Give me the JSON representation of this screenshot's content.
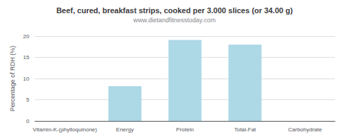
{
  "chart_data": {
    "type": "bar",
    "title": "Beef, cured, breakfast strips, cooked per 3.000 slices (or 34.00 g)",
    "subtitle": "www.dietandfitnesstoday.com",
    "categories": [
      "Vitamin-K-(phylloquinone)",
      "Energy",
      "Protein",
      "Total-Fat",
      "Carbohydrate"
    ],
    "values": [
      0,
      8.2,
      19.1,
      18.0,
      0
    ],
    "color": "#ADD8E6",
    "ylabel": "Percentage of RDH (%)",
    "ylim": [
      0,
      20
    ],
    "yticks": [
      0,
      5,
      10,
      15,
      20
    ],
    "grid": true
  }
}
